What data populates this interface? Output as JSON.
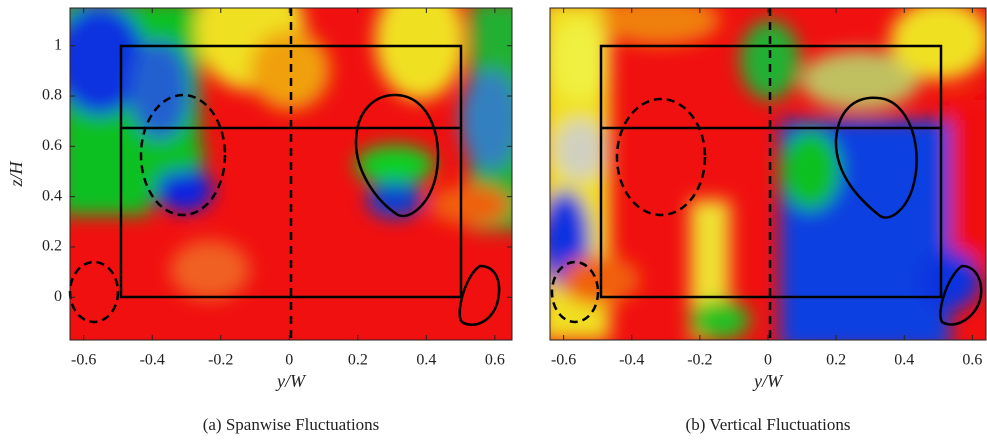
{
  "chart_data": [
    {
      "type": "heatmap",
      "caption": "(a) Spanwise Fluctuations",
      "xlabel": "y/W",
      "ylabel": "z/H",
      "xlim": [
        -0.64,
        0.65
      ],
      "xticks": [
        -0.6,
        -0.4,
        -0.2,
        0,
        0.2,
        0.4,
        0.6
      ],
      "ylim": [
        -0.17,
        1.15
      ],
      "yticks": [
        0,
        0.2,
        0.4,
        0.6,
        0.8,
        1
      ]
    },
    {
      "type": "heatmap",
      "caption": "(b) Vertical Fluctuations",
      "xlabel": "y/W",
      "xlim": [
        -0.64,
        0.64
      ],
      "xticks": [
        -0.6,
        -0.4,
        -0.2,
        0,
        0.2,
        0.4,
        0.6
      ]
    }
  ]
}
